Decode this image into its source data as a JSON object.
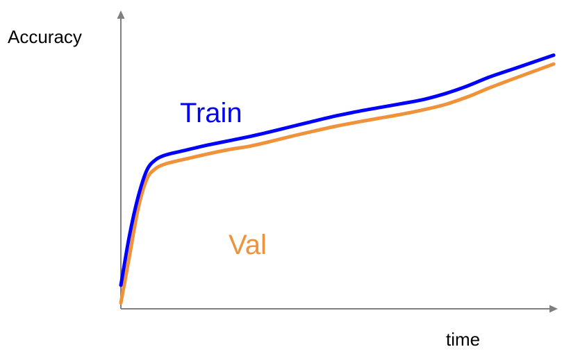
{
  "chart_data": {
    "type": "line",
    "title": "",
    "xlabel": "time",
    "ylabel": "Accuracy",
    "grid": false,
    "legend": "inline labels",
    "xlim": [
      0,
      100
    ],
    "ylim": [
      0,
      100
    ],
    "series": [
      {
        "name": "Train",
        "color": "#0000ff",
        "x": [
          0,
          2,
          4,
          6,
          8,
          10,
          12,
          15,
          20,
          25,
          30,
          35,
          40,
          45,
          50,
          55,
          60,
          65,
          70,
          75,
          80,
          85,
          90,
          95,
          100
        ],
        "y": [
          8,
          25,
          38,
          47,
          50.5,
          52,
          52.8,
          53.8,
          55.5,
          57,
          58.5,
          60.2,
          62,
          63.8,
          65.5,
          67,
          68.3,
          69.6,
          71,
          73,
          75.5,
          78.5,
          81,
          83.5,
          86
        ]
      },
      {
        "name": "Val",
        "color": "#f0923a",
        "x": [
          0,
          2,
          4,
          6,
          8,
          10,
          12,
          15,
          20,
          25,
          30,
          35,
          40,
          45,
          50,
          55,
          60,
          65,
          70,
          75,
          80,
          85,
          90,
          95,
          100
        ],
        "y": [
          2,
          18,
          34,
          44,
          47.5,
          49,
          49.8,
          50.8,
          52.5,
          54,
          55.2,
          56.9,
          58.7,
          60.4,
          62,
          63.4,
          64.7,
          66,
          67.5,
          69.3,
          71.8,
          74.8,
          77.6,
          80.3,
          83
        ]
      }
    ]
  }
}
